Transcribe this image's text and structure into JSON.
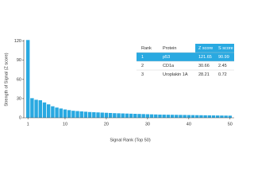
{
  "chart_data": {
    "type": "bar",
    "x_label": "Signal Rank (Top 50)",
    "y_label": "Strength of Signal (Z score)",
    "x": [
      1,
      2,
      3,
      4,
      5,
      6,
      7,
      8,
      9,
      10,
      11,
      12,
      13,
      14,
      15,
      16,
      17,
      18,
      19,
      20,
      21,
      22,
      23,
      24,
      25,
      26,
      27,
      28,
      29,
      30,
      31,
      32,
      33,
      34,
      35,
      36,
      37,
      38,
      39,
      40,
      41,
      42,
      43,
      44,
      45,
      46,
      47,
      48,
      49,
      50
    ],
    "values": [
      121.65,
      30.66,
      28.21,
      27.49,
      24,
      21,
      18,
      16,
      14.5,
      13,
      12,
      11,
      10.5,
      10,
      9.5,
      9,
      8.7,
      8.4,
      8.1,
      7.8,
      7.5,
      7.2,
      7,
      6.8,
      6.6,
      6.4,
      6.2,
      6,
      5.8,
      5.6,
      5.4,
      5.2,
      5,
      4.9,
      4.8,
      4.7,
      4.6,
      4.5,
      4.4,
      4.3,
      4.2,
      4.1,
      4,
      3.9,
      3.8,
      3.7,
      3.6,
      3.5,
      3.4,
      3.3
    ],
    "color": "#29a9e1",
    "xlim": [
      0,
      51
    ],
    "xticks": [
      1,
      10,
      20,
      30,
      40,
      50
    ],
    "ylim": [
      0,
      122
    ],
    "yticks": [
      0,
      30,
      60,
      90,
      120
    ]
  },
  "table": {
    "columns": [
      "Rank",
      "Protein",
      "Z score",
      "S score"
    ],
    "rows": [
      [
        "1",
        "p53",
        "121.65",
        "90.99"
      ],
      [
        "2",
        "CD1a",
        "30.66",
        "2.45"
      ],
      [
        "3",
        "Uroplakin 1A",
        "28.21",
        "0.72"
      ]
    ]
  }
}
